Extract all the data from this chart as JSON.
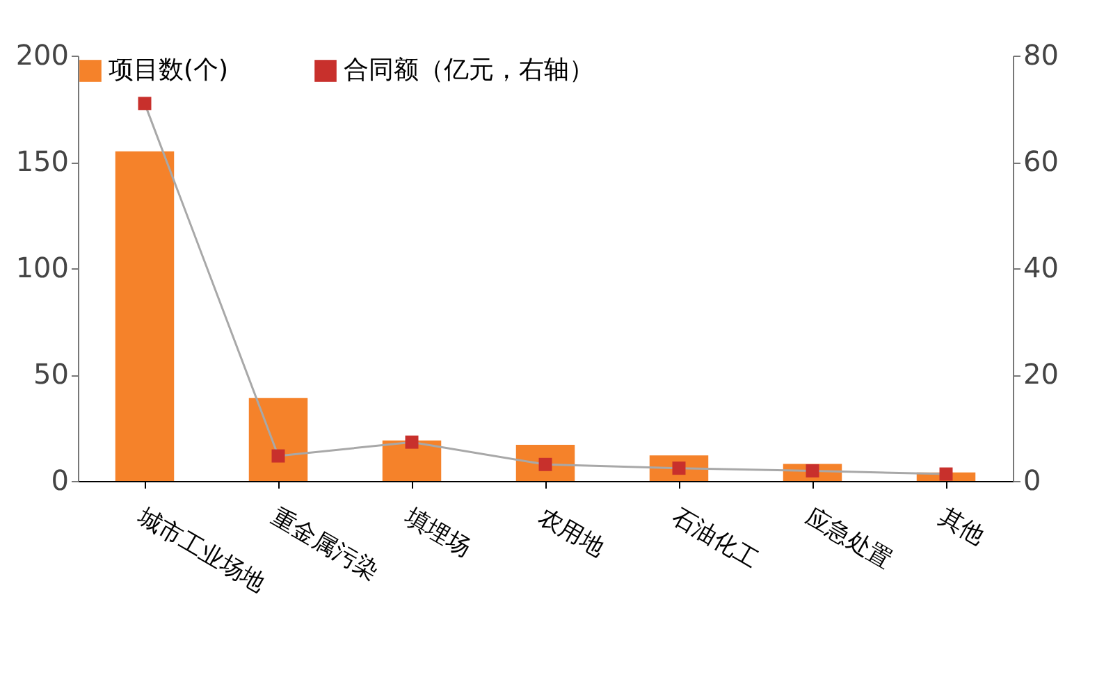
{
  "chart_data": {
    "type": "bar",
    "categories": [
      "城市工业场地",
      "重金属污染",
      "填埋场",
      "农用地",
      "石油化工",
      "应急处置",
      "其他"
    ],
    "series": [
      {
        "name": "项目数(个)",
        "color": "#f5822a",
        "values": [
          155,
          39,
          19,
          17,
          12,
          8,
          4
        ]
      },
      {
        "name": "合同额（亿元，右轴）",
        "type": "line",
        "axis": "y2",
        "color": "#c8302c",
        "marker": "square",
        "values": [
          71,
          4.7,
          7.3,
          3.1,
          2.4,
          1.9,
          1.3
        ]
      }
    ],
    "ylim": [
      0,
      200
    ],
    "yticks": [
      0,
      50,
      100,
      150,
      200
    ],
    "y2lim": [
      0,
      80
    ],
    "y2ticks": [
      0,
      20,
      40,
      60,
      80
    ],
    "grid": false,
    "legend": "top"
  }
}
